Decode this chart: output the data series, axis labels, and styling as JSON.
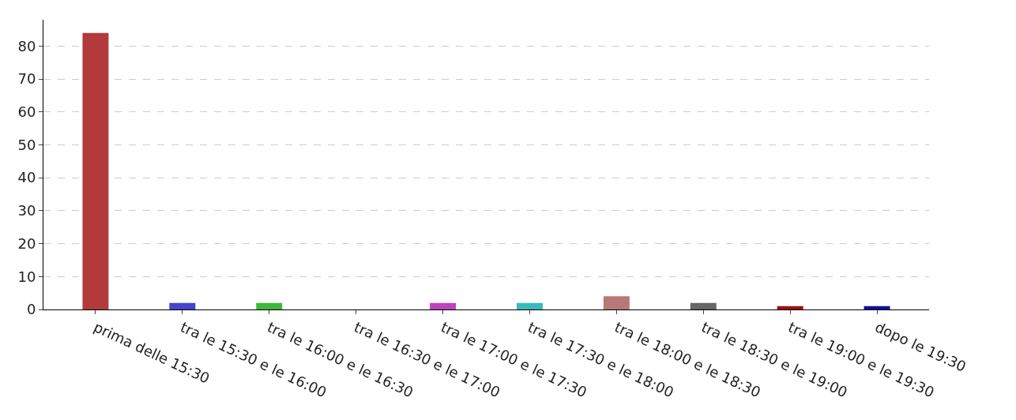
{
  "chart_data": {
    "type": "bar",
    "categories": [
      "prima delle 15:30",
      "tra le 15:30 e le 16:00",
      "tra le 16:00 e le 16:30",
      "tra le 16:30 e le 17:00",
      "tra le 17:00 e le 17:30",
      "tra le 17:30 e le 18:00",
      "tra le 18:00 e le 18:30",
      "tra le 18:30 e le 19:00",
      "tra le 19:00 e le 19:30",
      "dopo le 19:30"
    ],
    "values": [
      84,
      2,
      2,
      0,
      2,
      2,
      4,
      2,
      1,
      1
    ],
    "colors": [
      "#b23a3a",
      "#4444cc",
      "#3cb83c",
      "#ffff55",
      "#bb44bb",
      "#3cb8b8",
      "#b87878",
      "#666666",
      "#991111",
      "#111199"
    ],
    "ylim": [
      0,
      88
    ],
    "yticks": [
      0,
      10,
      20,
      30,
      40,
      50,
      60,
      70,
      80
    ],
    "grid": "y",
    "legend": false
  }
}
